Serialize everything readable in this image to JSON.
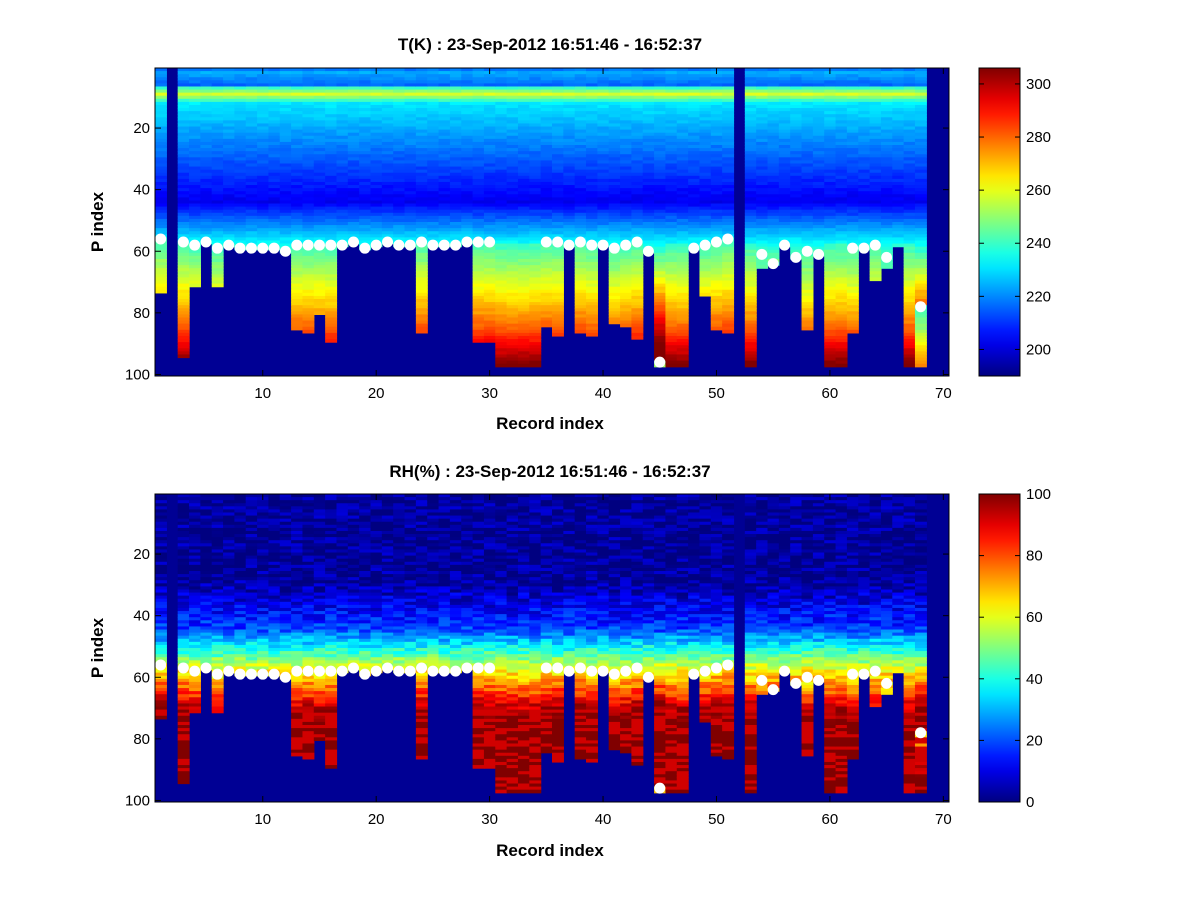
{
  "chart_data": [
    {
      "type": "heatmap",
      "title": "T(K) : 23-Sep-2012 16:51:46 - 16:52:37",
      "xlabel": "Record index",
      "ylabel": "P index",
      "xlim": [
        0.5,
        70.5
      ],
      "ylim": [
        0.5,
        100.5
      ],
      "y_reversed": true,
      "xticks": [
        "10",
        "20",
        "30",
        "40",
        "50",
        "60",
        "70"
      ],
      "yticks": [
        "20",
        "40",
        "60",
        "80",
        "100"
      ],
      "colorbar": {
        "min": 190,
        "max": 306,
        "ticks": [
          "200",
          "220",
          "240",
          "260",
          "280",
          "300"
        ]
      },
      "variable": "T",
      "white_markers": "surface level per record"
    },
    {
      "type": "heatmap",
      "title": "RH(%) : 23-Sep-2012 16:51:46 - 16:52:37",
      "xlabel": "Record index",
      "ylabel": "P index",
      "xlim": [
        0.5,
        70.5
      ],
      "ylim": [
        0.5,
        100.5
      ],
      "y_reversed": true,
      "xticks": [
        "10",
        "20",
        "30",
        "40",
        "50",
        "60",
        "70"
      ],
      "yticks": [
        "20",
        "40",
        "60",
        "80",
        "100"
      ],
      "colorbar": {
        "min": 0,
        "max": 100,
        "ticks": [
          "0",
          "20",
          "40",
          "60",
          "80",
          "100"
        ]
      },
      "variable": "RH",
      "white_markers": "surface level per record"
    }
  ],
  "records": {
    "surface_level": [
      56,
      0,
      57,
      58,
      57,
      59,
      58,
      59,
      59,
      59,
      59,
      60,
      58,
      58,
      58,
      58,
      58,
      57,
      59,
      58,
      57,
      58,
      58,
      57,
      58,
      58,
      58,
      57,
      57,
      57,
      0,
      0,
      0,
      0,
      57,
      57,
      58,
      57,
      58,
      58,
      59,
      58,
      57,
      60,
      96,
      0,
      0,
      59,
      58,
      57,
      56,
      0,
      0,
      61,
      64,
      58,
      62,
      60,
      61,
      0,
      0,
      59,
      59,
      58,
      62,
      0,
      0,
      78,
      0,
      0
    ],
    "bottom_level": [
      73,
      0,
      94,
      71,
      57,
      71,
      57,
      57,
      57,
      57,
      57,
      57,
      85,
      86,
      80,
      89,
      57,
      57,
      57,
      57,
      57,
      57,
      57,
      86,
      57,
      57,
      57,
      57,
      89,
      89,
      97,
      97,
      97,
      97,
      84,
      87,
      57,
      86,
      87,
      57,
      83,
      84,
      88,
      57,
      97,
      97,
      97,
      57,
      74,
      85,
      86,
      0,
      97,
      65,
      57,
      57,
      57,
      85,
      57,
      97,
      97,
      86,
      57,
      69,
      65,
      57,
      97,
      97,
      0,
      0
    ],
    "valid": [
      1,
      0,
      1,
      1,
      1,
      1,
      1,
      1,
      1,
      1,
      1,
      1,
      1,
      1,
      1,
      1,
      1,
      1,
      1,
      1,
      1,
      1,
      1,
      1,
      1,
      1,
      1,
      1,
      1,
      1,
      1,
      1,
      1,
      1,
      1,
      1,
      1,
      1,
      1,
      1,
      1,
      1,
      1,
      1,
      1,
      1,
      1,
      1,
      1,
      1,
      1,
      0,
      1,
      1,
      1,
      1,
      1,
      1,
      1,
      1,
      1,
      1,
      1,
      1,
      1,
      1,
      1,
      1,
      0,
      0
    ]
  }
}
